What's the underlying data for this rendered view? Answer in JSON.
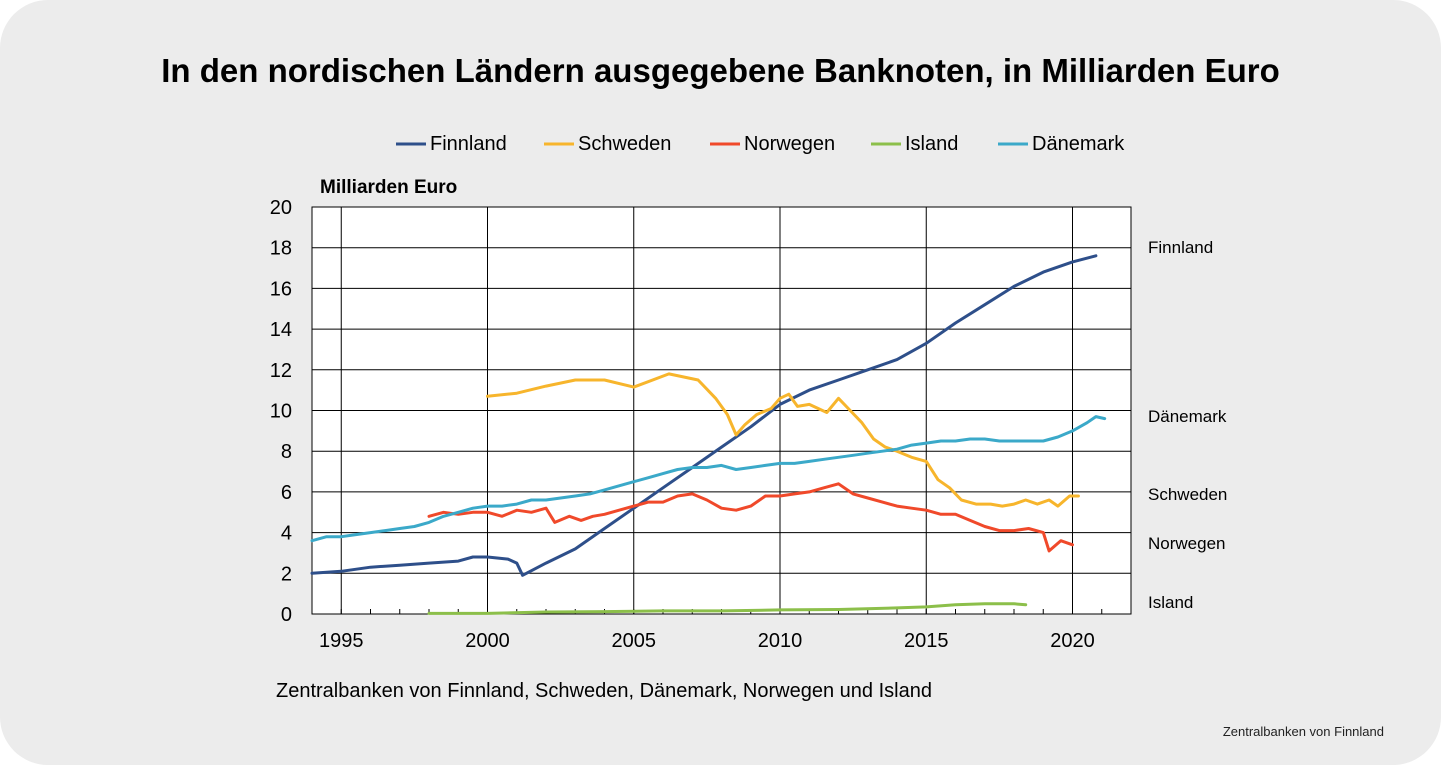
{
  "title": "In den nordischen Ländern ausgegebene Banknoten, in Milliarden Euro",
  "source": "Zentralbanken von Finnland, Schweden, Dänemark, Norwegen und Island",
  "credit": "Zentralbanken von Finnland",
  "chart_data": {
    "type": "line",
    "ylabel": "Milliarden Euro",
    "xlim": [
      1994,
      2022
    ],
    "ylim": [
      0,
      20
    ],
    "x_ticks": [
      1995,
      2000,
      2005,
      2010,
      2015,
      2020
    ],
    "y_ticks": [
      0,
      2,
      4,
      6,
      8,
      10,
      12,
      14,
      16,
      18,
      20
    ],
    "grid": true,
    "legend": "top",
    "series": [
      {
        "name": "Finnland",
        "end_label": "Finnland",
        "color": "#2e4f8a",
        "points": [
          [
            1994.0,
            2.0
          ],
          [
            1995.0,
            2.1
          ],
          [
            1996.0,
            2.3
          ],
          [
            1997.0,
            2.4
          ],
          [
            1998.0,
            2.5
          ],
          [
            1999.0,
            2.6
          ],
          [
            1999.5,
            2.8
          ],
          [
            2000.0,
            2.8
          ],
          [
            2000.7,
            2.7
          ],
          [
            2001.0,
            2.5
          ],
          [
            2001.2,
            1.9
          ],
          [
            2001.6,
            2.2
          ],
          [
            2002.0,
            2.5
          ],
          [
            2003.0,
            3.2
          ],
          [
            2004.0,
            4.2
          ],
          [
            2005.0,
            5.2
          ],
          [
            2006.0,
            6.2
          ],
          [
            2007.0,
            7.2
          ],
          [
            2008.0,
            8.2
          ],
          [
            2009.0,
            9.2
          ],
          [
            2010.0,
            10.3
          ],
          [
            2011.0,
            11.0
          ],
          [
            2012.0,
            11.5
          ],
          [
            2013.0,
            12.0
          ],
          [
            2014.0,
            12.5
          ],
          [
            2015.0,
            13.3
          ],
          [
            2016.0,
            14.3
          ],
          [
            2017.0,
            15.2
          ],
          [
            2018.0,
            16.1
          ],
          [
            2019.0,
            16.8
          ],
          [
            2020.0,
            17.3
          ],
          [
            2020.8,
            17.6
          ]
        ]
      },
      {
        "name": "Schweden",
        "end_label": "Schweden",
        "color": "#f7b52c",
        "points": [
          [
            2000.0,
            10.7
          ],
          [
            2001.0,
            10.85
          ],
          [
            2002.0,
            11.2
          ],
          [
            2003.0,
            11.5
          ],
          [
            2004.0,
            11.5
          ],
          [
            2005.0,
            11.15
          ],
          [
            2006.2,
            11.8
          ],
          [
            2007.2,
            11.5
          ],
          [
            2007.8,
            10.6
          ],
          [
            2008.2,
            9.8
          ],
          [
            2008.5,
            8.8
          ],
          [
            2008.8,
            9.3
          ],
          [
            2009.2,
            9.8
          ],
          [
            2009.7,
            10.1
          ],
          [
            2010.0,
            10.6
          ],
          [
            2010.3,
            10.8
          ],
          [
            2010.6,
            10.2
          ],
          [
            2011.0,
            10.3
          ],
          [
            2011.6,
            9.9
          ],
          [
            2012.0,
            10.6
          ],
          [
            2012.4,
            10.0
          ],
          [
            2012.8,
            9.4
          ],
          [
            2013.2,
            8.6
          ],
          [
            2013.6,
            8.2
          ],
          [
            2014.0,
            8.0
          ],
          [
            2014.5,
            7.7
          ],
          [
            2015.0,
            7.5
          ],
          [
            2015.4,
            6.6
          ],
          [
            2015.8,
            6.2
          ],
          [
            2016.2,
            5.6
          ],
          [
            2016.7,
            5.4
          ],
          [
            2017.2,
            5.4
          ],
          [
            2017.6,
            5.3
          ],
          [
            2018.0,
            5.4
          ],
          [
            2018.4,
            5.6
          ],
          [
            2018.8,
            5.4
          ],
          [
            2019.2,
            5.6
          ],
          [
            2019.5,
            5.3
          ],
          [
            2019.9,
            5.8
          ],
          [
            2020.2,
            5.8
          ]
        ]
      },
      {
        "name": "Norwegen",
        "end_label": "Norwegen",
        "color": "#f0492a",
        "points": [
          [
            1998.0,
            4.8
          ],
          [
            1998.5,
            5.0
          ],
          [
            1999.0,
            4.9
          ],
          [
            1999.5,
            5.0
          ],
          [
            2000.0,
            5.0
          ],
          [
            2000.5,
            4.8
          ],
          [
            2001.0,
            5.1
          ],
          [
            2001.5,
            5.0
          ],
          [
            2002.0,
            5.2
          ],
          [
            2002.3,
            4.5
          ],
          [
            2002.8,
            4.8
          ],
          [
            2003.2,
            4.6
          ],
          [
            2003.6,
            4.8
          ],
          [
            2004.0,
            4.9
          ],
          [
            2004.5,
            5.1
          ],
          [
            2005.0,
            5.3
          ],
          [
            2005.5,
            5.5
          ],
          [
            2006.0,
            5.5
          ],
          [
            2006.5,
            5.8
          ],
          [
            2007.0,
            5.9
          ],
          [
            2007.5,
            5.6
          ],
          [
            2008.0,
            5.2
          ],
          [
            2008.5,
            5.1
          ],
          [
            2009.0,
            5.3
          ],
          [
            2009.5,
            5.8
          ],
          [
            2010.0,
            5.8
          ],
          [
            2010.5,
            5.9
          ],
          [
            2011.0,
            6.0
          ],
          [
            2011.5,
            6.2
          ],
          [
            2012.0,
            6.4
          ],
          [
            2012.5,
            5.9
          ],
          [
            2013.0,
            5.7
          ],
          [
            2013.5,
            5.5
          ],
          [
            2014.0,
            5.3
          ],
          [
            2014.5,
            5.2
          ],
          [
            2015.0,
            5.1
          ],
          [
            2015.5,
            4.9
          ],
          [
            2016.0,
            4.9
          ],
          [
            2016.5,
            4.6
          ],
          [
            2017.0,
            4.3
          ],
          [
            2017.5,
            4.1
          ],
          [
            2018.0,
            4.1
          ],
          [
            2018.5,
            4.2
          ],
          [
            2019.0,
            4.0
          ],
          [
            2019.2,
            3.1
          ],
          [
            2019.6,
            3.6
          ],
          [
            2020.0,
            3.4
          ]
        ]
      },
      {
        "name": "Island",
        "end_label": "Island",
        "color": "#8cbf4a",
        "points": [
          [
            1998.0,
            0.03
          ],
          [
            2000.0,
            0.03
          ],
          [
            2002.0,
            0.1
          ],
          [
            2004.0,
            0.12
          ],
          [
            2006.0,
            0.15
          ],
          [
            2008.0,
            0.15
          ],
          [
            2010.0,
            0.2
          ],
          [
            2012.0,
            0.22
          ],
          [
            2014.0,
            0.3
          ],
          [
            2015.0,
            0.35
          ],
          [
            2016.0,
            0.45
          ],
          [
            2017.0,
            0.5
          ],
          [
            2018.0,
            0.5
          ],
          [
            2018.4,
            0.45
          ]
        ]
      },
      {
        "name": "Dänemark",
        "end_label": "Dänemark",
        "color": "#3ba9c9",
        "points": [
          [
            1994.0,
            3.6
          ],
          [
            1994.5,
            3.8
          ],
          [
            1995.0,
            3.8
          ],
          [
            1995.5,
            3.9
          ],
          [
            1996.0,
            4.0
          ],
          [
            1996.5,
            4.1
          ],
          [
            1997.0,
            4.2
          ],
          [
            1997.5,
            4.3
          ],
          [
            1998.0,
            4.5
          ],
          [
            1998.5,
            4.8
          ],
          [
            1999.0,
            5.0
          ],
          [
            1999.5,
            5.2
          ],
          [
            2000.0,
            5.3
          ],
          [
            2000.5,
            5.3
          ],
          [
            2001.0,
            5.4
          ],
          [
            2001.5,
            5.6
          ],
          [
            2002.0,
            5.6
          ],
          [
            2002.5,
            5.7
          ],
          [
            2003.0,
            5.8
          ],
          [
            2003.5,
            5.9
          ],
          [
            2004.0,
            6.1
          ],
          [
            2004.5,
            6.3
          ],
          [
            2005.0,
            6.5
          ],
          [
            2005.5,
            6.7
          ],
          [
            2006.0,
            6.9
          ],
          [
            2006.5,
            7.1
          ],
          [
            2007.0,
            7.2
          ],
          [
            2007.5,
            7.2
          ],
          [
            2008.0,
            7.3
          ],
          [
            2008.5,
            7.1
          ],
          [
            2009.0,
            7.2
          ],
          [
            2009.5,
            7.3
          ],
          [
            2010.0,
            7.4
          ],
          [
            2010.5,
            7.4
          ],
          [
            2011.0,
            7.5
          ],
          [
            2011.5,
            7.6
          ],
          [
            2012.0,
            7.7
          ],
          [
            2012.5,
            7.8
          ],
          [
            2013.0,
            7.9
          ],
          [
            2013.5,
            8.0
          ],
          [
            2014.0,
            8.1
          ],
          [
            2014.5,
            8.3
          ],
          [
            2015.0,
            8.4
          ],
          [
            2015.5,
            8.5
          ],
          [
            2016.0,
            8.5
          ],
          [
            2016.5,
            8.6
          ],
          [
            2017.0,
            8.6
          ],
          [
            2017.5,
            8.5
          ],
          [
            2018.0,
            8.5
          ],
          [
            2018.5,
            8.5
          ],
          [
            2019.0,
            8.5
          ],
          [
            2019.5,
            8.7
          ],
          [
            2020.0,
            9.0
          ],
          [
            2020.5,
            9.4
          ],
          [
            2020.8,
            9.7
          ],
          [
            2021.1,
            9.6
          ]
        ]
      }
    ]
  }
}
